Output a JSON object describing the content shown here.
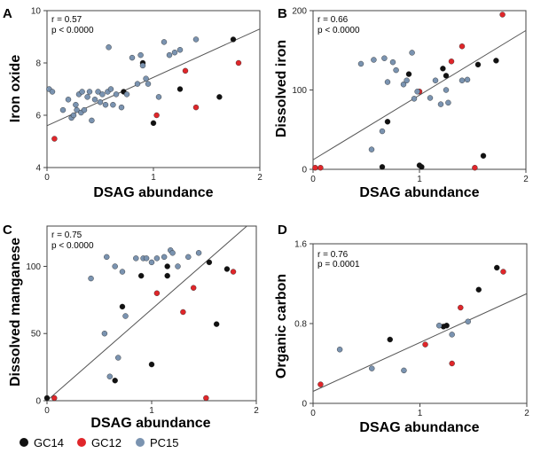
{
  "legend": [
    {
      "label": "GC14",
      "color": "#111111"
    },
    {
      "label": "GC12",
      "color": "#e0262a"
    },
    {
      "label": "PC15",
      "color": "#7a93b0"
    }
  ],
  "chart_data": [
    {
      "type": "scatter",
      "panel": "A",
      "xlabel": "DSAG abundance",
      "ylabel": "Iron oxide",
      "xlim": [
        0,
        2
      ],
      "ylim": [
        4,
        10
      ],
      "xticks": [
        0,
        1,
        2
      ],
      "yticks": [
        4,
        6,
        8,
        10
      ],
      "stats": [
        "r = 0.57",
        "p < 0.0000"
      ],
      "fit": [
        [
          0,
          5.6
        ],
        [
          2,
          9.3
        ]
      ],
      "series": [
        {
          "name": "GC14",
          "x": [
            0.72,
            0.9,
            1.0,
            1.25,
            1.62,
            1.75
          ],
          "y": [
            6.9,
            8.0,
            5.7,
            7.0,
            6.7,
            8.9
          ]
        },
        {
          "name": "GC12",
          "x": [
            0.07,
            1.03,
            1.3,
            1.4,
            1.8
          ],
          "y": [
            5.1,
            6.0,
            7.7,
            6.3,
            8.0
          ]
        },
        {
          "name": "PC15",
          "x": [
            0.02,
            0.05,
            0.15,
            0.2,
            0.23,
            0.25,
            0.27,
            0.28,
            0.3,
            0.32,
            0.33,
            0.35,
            0.38,
            0.4,
            0.42,
            0.45,
            0.48,
            0.5,
            0.52,
            0.55,
            0.57,
            0.58,
            0.6,
            0.62,
            0.65,
            0.7,
            0.75,
            0.8,
            0.85,
            0.88,
            0.9,
            0.93,
            0.95,
            1.05,
            1.1,
            1.15,
            1.2,
            1.25,
            1.4
          ],
          "y": [
            7.0,
            6.9,
            6.2,
            6.6,
            5.9,
            6.0,
            6.4,
            6.2,
            6.8,
            6.1,
            6.9,
            6.2,
            6.7,
            6.9,
            5.8,
            6.6,
            6.9,
            6.5,
            6.8,
            6.4,
            6.9,
            8.6,
            7.0,
            6.4,
            6.8,
            6.3,
            6.8,
            8.2,
            7.2,
            8.3,
            7.9,
            7.4,
            7.2,
            6.7,
            8.8,
            8.3,
            8.4,
            8.5,
            8.9
          ]
        }
      ]
    },
    {
      "type": "scatter",
      "panel": "B",
      "xlabel": "DSAG abundance",
      "ylabel": "Dissolved iron",
      "xlim": [
        0,
        2
      ],
      "ylim": [
        0,
        200
      ],
      "xticks": [
        0,
        1,
        2
      ],
      "yticks": [
        0,
        100,
        200
      ],
      "stats": [
        "r = 0.66",
        "p < 0.0000"
      ],
      "fit": [
        [
          0,
          12
        ],
        [
          2,
          175
        ]
      ],
      "series": [
        {
          "name": "GC14",
          "x": [
            0.65,
            0.7,
            0.9,
            1.0,
            1.02,
            1.22,
            1.25,
            1.55,
            1.6,
            1.72
          ],
          "y": [
            3,
            60,
            120,
            5,
            3,
            127,
            118,
            132,
            17,
            137
          ]
        },
        {
          "name": "GC12",
          "x": [
            0.02,
            0.07,
            1.0,
            1.3,
            1.4,
            1.52,
            1.78
          ],
          "y": [
            2,
            2,
            98,
            136,
            155,
            2,
            195
          ]
        },
        {
          "name": "PC15",
          "x": [
            0.45,
            0.55,
            0.57,
            0.65,
            0.67,
            0.7,
            0.75,
            0.78,
            0.85,
            0.88,
            0.93,
            0.95,
            0.98,
            1.1,
            1.15,
            1.2,
            1.25,
            1.27,
            1.4,
            1.45
          ],
          "y": [
            133,
            25,
            138,
            48,
            140,
            110,
            135,
            125,
            107,
            112,
            147,
            89,
            98,
            90,
            112,
            82,
            100,
            84,
            112,
            113
          ]
        }
      ]
    },
    {
      "type": "scatter",
      "panel": "C",
      "xlabel": "DSAG abundance",
      "ylabel": "Dissolved manganese",
      "xlim": [
        0,
        2
      ],
      "ylim": [
        0,
        130
      ],
      "xticks": [
        0,
        1,
        2
      ],
      "yticks": [
        0,
        50,
        100
      ],
      "stats": [
        "r = 0.75",
        "p < 0.0000"
      ],
      "fit": [
        [
          0,
          0
        ],
        [
          1.91,
          130
        ]
      ],
      "series": [
        {
          "name": "GC14",
          "x": [
            0.0,
            0.65,
            0.72,
            0.9,
            1.0,
            1.15,
            1.15,
            1.55,
            1.62,
            1.72
          ],
          "y": [
            2,
            15,
            70,
            93,
            27,
            93,
            100,
            103,
            57,
            98
          ]
        },
        {
          "name": "GC12",
          "x": [
            0.07,
            1.05,
            1.3,
            1.4,
            1.52,
            1.78
          ],
          "y": [
            2,
            80,
            66,
            84,
            2,
            96
          ]
        },
        {
          "name": "PC15",
          "x": [
            0.42,
            0.55,
            0.57,
            0.6,
            0.65,
            0.68,
            0.72,
            0.75,
            0.85,
            0.92,
            0.95,
            1.0,
            1.05,
            1.12,
            1.18,
            1.2,
            1.25,
            1.35,
            1.45
          ],
          "y": [
            91,
            50,
            107,
            18,
            100,
            32,
            96,
            63,
            106,
            106,
            106,
            103,
            106,
            107,
            112,
            110,
            100,
            107,
            110
          ]
        }
      ]
    },
    {
      "type": "scatter",
      "panel": "D",
      "xlabel": "DSAG abundance",
      "ylabel": "Organic carbon",
      "xlim": [
        0,
        2
      ],
      "ylim": [
        0,
        1.6
      ],
      "xticks": [
        0,
        1,
        2
      ],
      "yticks": [
        0,
        0.8,
        1.6
      ],
      "stats": [
        "r = 0.76",
        "p = 0.0001"
      ],
      "fit": [
        [
          0,
          0.12
        ],
        [
          2,
          1.1
        ]
      ],
      "series": [
        {
          "name": "GC14",
          "x": [
            0.72,
            1.22,
            1.25,
            1.55,
            1.72
          ],
          "y": [
            0.64,
            0.77,
            0.78,
            1.14,
            1.36
          ]
        },
        {
          "name": "GC12",
          "x": [
            0.07,
            1.05,
            1.3,
            1.38,
            1.78
          ],
          "y": [
            0.19,
            0.59,
            0.4,
            0.96,
            1.32
          ]
        },
        {
          "name": "PC15",
          "x": [
            0.25,
            0.55,
            0.85,
            1.18,
            1.3,
            1.45
          ],
          "y": [
            0.54,
            0.35,
            0.33,
            0.78,
            0.69,
            0.82
          ]
        }
      ]
    }
  ],
  "panel_letters": [
    "A",
    "B",
    "C",
    "D"
  ]
}
